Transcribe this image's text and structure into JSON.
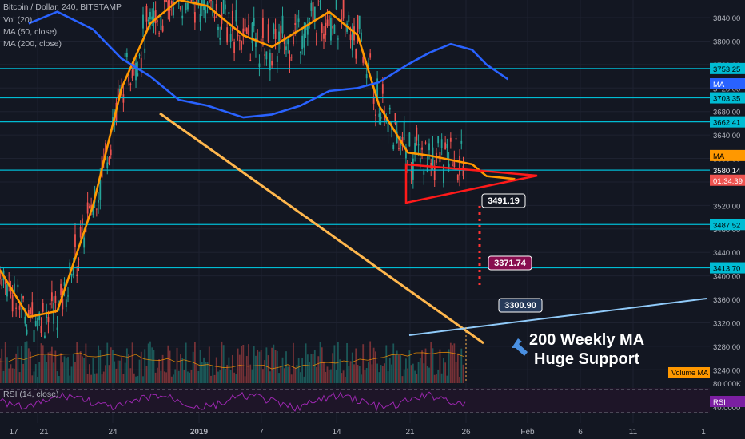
{
  "header": {
    "title": "Bitcoin / Dollar, 240, BITSTAMP",
    "vol": "Vol (20)",
    "ma50": "MA (50, close)",
    "ma200": "MA (200, close)",
    "rsi": "RSI (14, close)"
  },
  "colors": {
    "background": "#131722",
    "up": "#26a69a",
    "down": "#ef5350",
    "ma50": "#ff9800",
    "ma200": "#2962ff",
    "hline": "#00bcd4",
    "triangle": "#ff1a1a",
    "trend": "#ffb74d",
    "support": "#90caf9",
    "rsi": "#9c27b0"
  },
  "price_axis": {
    "ticks": [
      "3840.00",
      "3800.00",
      "3760.00",
      "3720.00",
      "3680.00",
      "3640.00",
      "3600.00",
      "3560.00",
      "3520.00",
      "3480.00",
      "3440.00",
      "3400.00",
      "3360.00",
      "3320.00",
      "3280.00",
      "3240.00"
    ],
    "volume_tick": "80.000K",
    "rsi_tick": "40.0000"
  },
  "time_axis": [
    "17",
    "21",
    "24",
    "2019",
    "7",
    "14",
    "21",
    "26",
    "Feb",
    "6",
    "11",
    "1"
  ],
  "level_labels": {
    "l3753": "3753.25",
    "l3703": "3703.35",
    "l3662": "3662.41",
    "l3580": "3580.14",
    "l3487": "3487.52",
    "l3413": "3413.70",
    "countdown": "01:34:39",
    "ma_tag": "MA",
    "ma_tag2": "MA",
    "volume_ma": "Volume MA",
    "rsi_tag": "RSI"
  },
  "callouts": {
    "c1": "3491.19",
    "c2": "3371.74",
    "c3": "3300.90"
  },
  "annotation": {
    "line1": "200 Weekly MA",
    "line2": "Huge Support"
  },
  "chart_data": {
    "type": "line",
    "title": "Bitcoin / Dollar, 240, BITSTAMP",
    "ylim": [
      3220,
      3870
    ],
    "horizontal_levels": [
      3753.25,
      3703.35,
      3662.41,
      3580.14,
      3487.52,
      3413.7
    ],
    "series": [
      {
        "name": "MA (50, close)",
        "x": [
          0,
          4,
          8,
          13,
          17,
          21,
          25,
          29,
          34,
          38,
          42,
          46,
          50,
          53,
          57,
          60,
          66,
          68,
          72
        ],
        "y": [
          3410,
          3330,
          3340,
          3520,
          3720,
          3830,
          3870,
          3860,
          3810,
          3790,
          3820,
          3850,
          3810,
          3690,
          3610,
          3605,
          3590,
          3570,
          3565
        ]
      },
      {
        "name": "MA (200, close)",
        "x": [
          4,
          8,
          13,
          17,
          21,
          25,
          29,
          34,
          38,
          42,
          46,
          50,
          53,
          57,
          60,
          63,
          66,
          68,
          71
        ],
        "y": [
          3830,
          3850,
          3820,
          3770,
          3740,
          3700,
          3690,
          3670,
          3675,
          3690,
          3715,
          3720,
          3730,
          3760,
          3780,
          3795,
          3785,
          3760,
          3735
        ]
      }
    ],
    "callout_prices": [
      3491.19,
      3371.74,
      3300.9
    ]
  }
}
